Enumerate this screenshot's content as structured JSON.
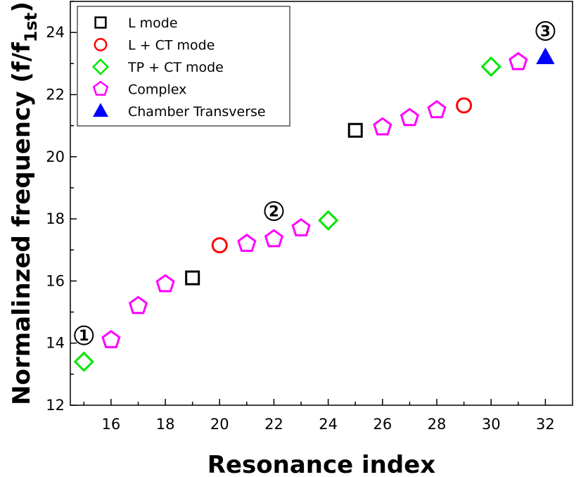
{
  "chart_data": {
    "type": "scatter",
    "title": "",
    "xlabel": "Resonance index",
    "ylabel_main": "Normalinzed frequency (f/f",
    "ylabel_sub": "1st",
    "ylabel_close": ")",
    "xlim": [
      14.5,
      33
    ],
    "ylim": [
      12,
      25
    ],
    "xticks": [
      16,
      18,
      20,
      22,
      24,
      26,
      28,
      30,
      32
    ],
    "yticks": [
      12,
      14,
      16,
      18,
      20,
      22,
      24
    ],
    "grid": false,
    "legend_position": "top-left",
    "series": [
      {
        "name": "L mode",
        "marker": "square",
        "color": "#000000",
        "filled": false,
        "points": [
          {
            "x": 19,
            "y": 16.1
          },
          {
            "x": 25,
            "y": 20.85
          }
        ]
      },
      {
        "name": "L + CT mode",
        "marker": "circle",
        "color": "#ff0000",
        "filled": false,
        "points": [
          {
            "x": 20,
            "y": 17.15
          },
          {
            "x": 29,
            "y": 21.65
          }
        ]
      },
      {
        "name": "TP + CT mode",
        "marker": "diamond",
        "color": "#00e600",
        "filled": false,
        "points": [
          {
            "x": 15,
            "y": 13.4
          },
          {
            "x": 24,
            "y": 17.95
          },
          {
            "x": 30,
            "y": 22.9
          }
        ]
      },
      {
        "name": "Complex",
        "marker": "pentagon",
        "color": "#ff00ff",
        "filled": false,
        "points": [
          {
            "x": 16,
            "y": 14.1
          },
          {
            "x": 17,
            "y": 15.2
          },
          {
            "x": 18,
            "y": 15.9
          },
          {
            "x": 21,
            "y": 17.2
          },
          {
            "x": 22,
            "y": 17.35
          },
          {
            "x": 23,
            "y": 17.7
          },
          {
            "x": 26,
            "y": 20.95
          },
          {
            "x": 27,
            "y": 21.25
          },
          {
            "x": 28,
            "y": 21.5
          },
          {
            "x": 31,
            "y": 23.05
          }
        ]
      },
      {
        "name": "Chamber Transverse",
        "marker": "triangle",
        "color": "#0000ff",
        "filled": true,
        "points": [
          {
            "x": 32,
            "y": 23.2
          }
        ]
      }
    ],
    "annotations": [
      {
        "text": "1",
        "x": 15,
        "y": 14.25
      },
      {
        "text": "2",
        "x": 22,
        "y": 18.25
      },
      {
        "text": "3",
        "x": 32,
        "y": 24.05
      }
    ]
  }
}
